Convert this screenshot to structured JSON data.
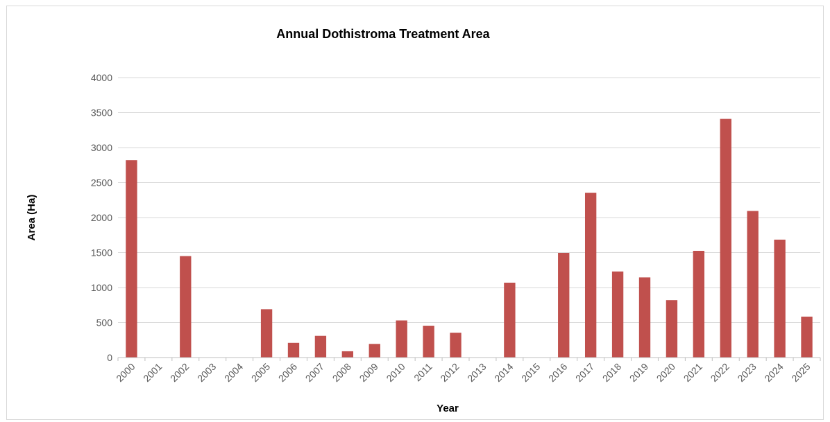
{
  "chart_data": {
    "type": "bar",
    "title": "Annual Dothistroma Treatment Area",
    "xlabel": "Year",
    "ylabel": "Area (Ha)",
    "ylim": [
      0,
      4000
    ],
    "yticks": [
      0,
      500,
      1000,
      1500,
      2000,
      2500,
      3000,
      3500,
      4000
    ],
    "grid": true,
    "legend": "none",
    "bar_color": "#c0504d",
    "categories": [
      "2000",
      "2001",
      "2002",
      "2003",
      "2004",
      "2005",
      "2006",
      "2007",
      "2008",
      "2009",
      "2010",
      "2011",
      "2012",
      "2013",
      "2014",
      "2015",
      "2016",
      "2017",
      "2018",
      "2019",
      "2020",
      "2021",
      "2022",
      "2023",
      "2024",
      "2025"
    ],
    "values": [
      2820,
      0,
      1450,
      0,
      0,
      690,
      210,
      310,
      90,
      195,
      530,
      455,
      355,
      0,
      1070,
      0,
      1495,
      2355,
      1230,
      1145,
      820,
      1525,
      3410,
      2095,
      1685,
      585
    ]
  }
}
